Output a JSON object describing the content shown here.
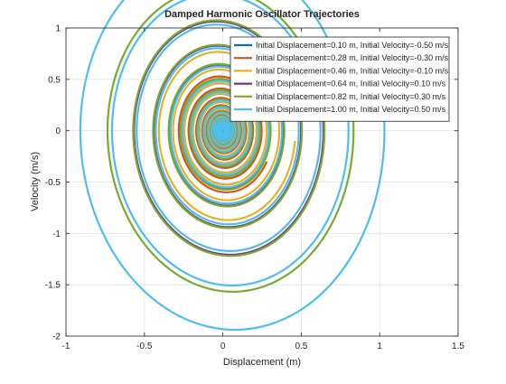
{
  "chart_data": {
    "type": "line",
    "title": "Damped Harmonic Oscillator Trajectories",
    "xlabel": "Displacement (m)",
    "ylabel": "Velocity (m/s)",
    "xlim": [
      -1,
      1.5
    ],
    "ylim": [
      -2,
      1
    ],
    "xticks": [
      -1,
      -0.5,
      0,
      0.5,
      1,
      1.5
    ],
    "xtick_labels": [
      "-1",
      "-0.5",
      "0",
      "0.5",
      "1",
      "1.5"
    ],
    "yticks": [
      -2,
      -1.5,
      -1,
      -0.5,
      0,
      0.5,
      1
    ],
    "ytick_labels": [
      "-2",
      "-1.5",
      "-1",
      "-0.5",
      "0",
      "0.5",
      "1"
    ],
    "grid": true,
    "legend_position": "top-right",
    "series": [
      {
        "name": "Initial Displacement=0.10 m, Initial Velocity=-0.50 m/s",
        "color": "#0072BD",
        "x0": 0.1,
        "v0": -0.5
      },
      {
        "name": "Initial Displacement=0.28 m, Initial Velocity=-0.30 m/s",
        "color": "#D95319",
        "x0": 0.28,
        "v0": -0.3
      },
      {
        "name": "Initial Displacement=0.46 m, Initial Velocity=-0.10 m/s",
        "color": "#EDB120",
        "x0": 0.46,
        "v0": -0.1
      },
      {
        "name": "Initial Displacement=0.64 m, Initial Velocity=0.10 m/s",
        "color": "#7E2F8E",
        "x0": 0.64,
        "v0": 0.1
      },
      {
        "name": "Initial Displacement=0.82 m, Initial Velocity=0.30 m/s",
        "color": "#77AC30",
        "x0": 0.82,
        "v0": 0.3
      },
      {
        "name": "Initial Displacement=1.00 m, Initial Velocity=0.50 m/s",
        "color": "#4DBEEE",
        "x0": 1.0,
        "v0": 0.5
      }
    ]
  }
}
